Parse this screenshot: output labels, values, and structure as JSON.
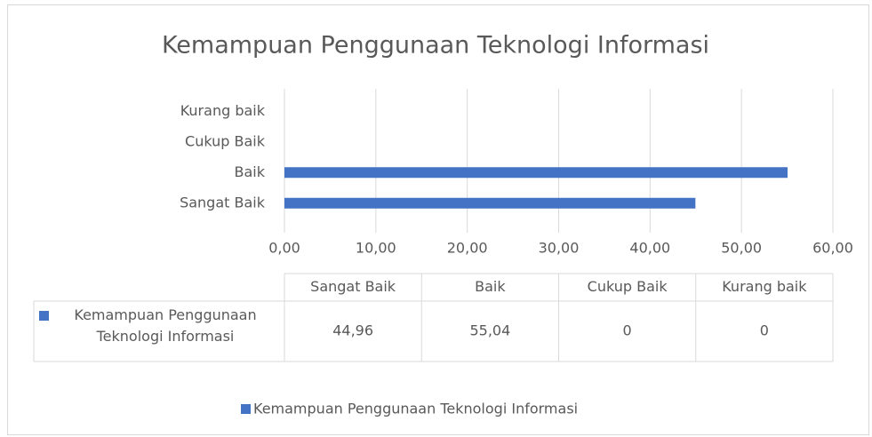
{
  "chart_data": {
    "type": "bar",
    "orientation": "horizontal",
    "title": "Kemampuan Penggunaan Teknologi Informasi",
    "categories": [
      "Sangat Baik",
      "Baik",
      "Cukup Baik",
      "Kurang baik"
    ],
    "series": [
      {
        "name": "Kemampuan Penggunaan Teknologi Informasi",
        "color": "#4472c4",
        "values": [
          44.96,
          55.04,
          0,
          0
        ],
        "value_labels": [
          "44,96",
          "55,04",
          "0",
          "0"
        ]
      }
    ],
    "xlim": [
      0,
      60
    ],
    "xticks": [
      {
        "value": 0,
        "label": "0,00"
      },
      {
        "value": 10,
        "label": "10,00"
      },
      {
        "value": 20,
        "label": "20,00"
      },
      {
        "value": 30,
        "label": "30,00"
      },
      {
        "value": 40,
        "label": "40,00"
      },
      {
        "value": 50,
        "label": "50,00"
      },
      {
        "value": 60,
        "label": "60,00"
      }
    ],
    "grid": true,
    "legend": "bottom"
  }
}
